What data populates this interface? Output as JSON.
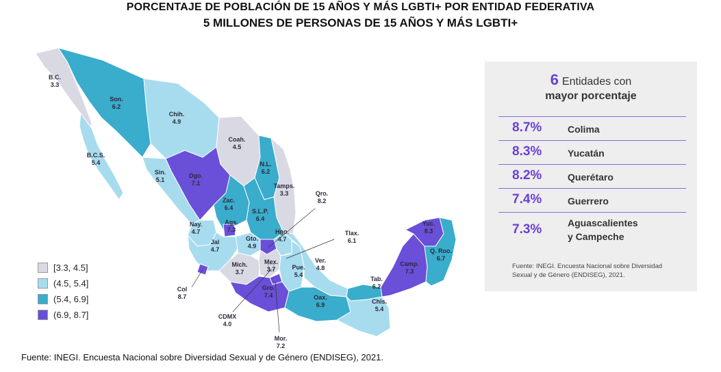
{
  "title": {
    "line1": "PORCENTAJE DE POBLACIÓN DE 15 AÑOS Y MÁS LGBTI+ POR ENTIDAD FEDERATIVA",
    "line2": "5 MILLONES DE PERSONAS DE 15 AÑOS Y MÁS LGBTI+"
  },
  "colors": {
    "c1": "#d9d9e4",
    "c2": "#a7dcee",
    "c3": "#3aaccc",
    "c4": "#6a4fd8"
  },
  "legend": [
    {
      "label": "[3.3, 4.5]",
      "color": "#d9d9e4"
    },
    {
      "label": "(4.5, 5.4]",
      "color": "#a7dcee"
    },
    {
      "label": "(5.4, 6.9]",
      "color": "#3aaccc"
    },
    {
      "label": "(6.9, 8.7]",
      "color": "#6a4fd8"
    }
  ],
  "states": [
    {
      "abbr": "B.C.",
      "value": "3.3"
    },
    {
      "abbr": "Son.",
      "value": "6.2"
    },
    {
      "abbr": "Chih.",
      "value": "4.9"
    },
    {
      "abbr": "Coah.",
      "value": "4.5"
    },
    {
      "abbr": "B.C.S.",
      "value": "5.4"
    },
    {
      "abbr": "N.L.",
      "value": "6.2"
    },
    {
      "abbr": "Sin.",
      "value": "5.1"
    },
    {
      "abbr": "Dgo.",
      "value": "7.1"
    },
    {
      "abbr": "Tamps.",
      "value": "3.3"
    },
    {
      "abbr": "Zac.",
      "value": "6.4"
    },
    {
      "abbr": "S.L.P.",
      "value": "6.4"
    },
    {
      "abbr": "Qro.",
      "value": "8.2"
    },
    {
      "abbr": "Ags.",
      "value": "7.3"
    },
    {
      "abbr": "Nay.",
      "value": "4.7"
    },
    {
      "abbr": "Gto.",
      "value": "4.9"
    },
    {
      "abbr": "Hgo.",
      "value": "4.7"
    },
    {
      "abbr": "Tlax.",
      "value": "6.1"
    },
    {
      "abbr": "Jal",
      "value": "4.7"
    },
    {
      "abbr": "Mich.",
      "value": "3.7"
    },
    {
      "abbr": "Mex.",
      "value": "3.7"
    },
    {
      "abbr": "Pue.",
      "value": "5.4"
    },
    {
      "abbr": "Ver.",
      "value": "4.8"
    },
    {
      "abbr": "Yuc.",
      "value": "8.3"
    },
    {
      "abbr": "Q. Roo.",
      "value": "6.7"
    },
    {
      "abbr": "Camp.",
      "value": "7.3"
    },
    {
      "abbr": "Tab.",
      "value": "6.2"
    },
    {
      "abbr": "Col",
      "value": "8.7"
    },
    {
      "abbr": "Gro.",
      "value": "7.4"
    },
    {
      "abbr": "Oax.",
      "value": "6.9"
    },
    {
      "abbr": "Chis.",
      "value": "5.4"
    },
    {
      "abbr": "CDMX",
      "value": "4.0"
    },
    {
      "abbr": "Mor.",
      "value": "7.2"
    }
  ],
  "panel": {
    "count": "6",
    "heading1": "Entidades con",
    "heading2": "mayor porcentaje",
    "top": [
      {
        "pct": "8.7%",
        "name": "Colima"
      },
      {
        "pct": "8.3%",
        "name": "Yucatán"
      },
      {
        "pct": "8.2%",
        "name": "Querétaro"
      },
      {
        "pct": "7.4%",
        "name": "Guerrero"
      },
      {
        "pct": "7.3%",
        "name": "Aguascalientes",
        "name2": "y Campeche"
      }
    ],
    "source_line1": "Fuente: INEGI. Encuesta Nacional sobre Diversidad",
    "source_line2": "Sexual y de Género (ENDISEG), 2021."
  },
  "footer": "Fuente:  INEGI. Encuesta Nacional sobre Diversidad Sexual y de Género (ENDISEG), 2021."
}
